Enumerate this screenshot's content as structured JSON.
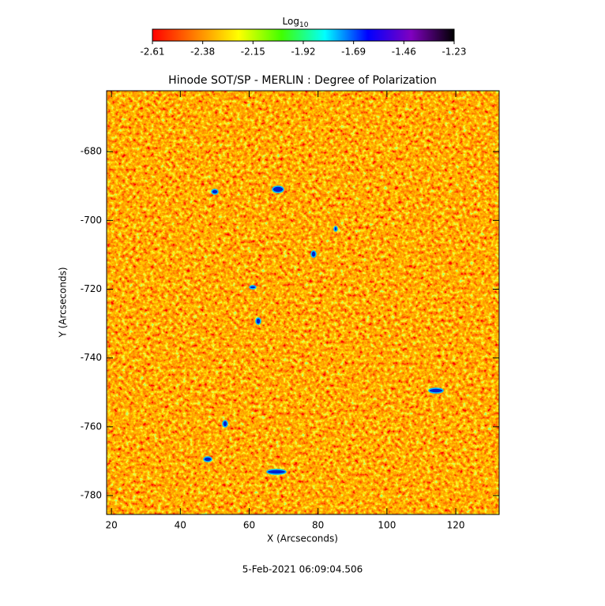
{
  "chart_data": {
    "type": "image",
    "title": "Hinode SOT/SP - MERLIN : Degree of Polarization",
    "xlabel": "X (Arcseconds)",
    "ylabel": "Y (Arcseconds)",
    "date": "5-Feb-2021 06:09:04.506",
    "xlim": [
      18.6,
      132.6
    ],
    "ylim": [
      -785.5,
      -662.3
    ],
    "xticks": [
      20,
      40,
      60,
      80,
      100,
      120
    ],
    "yticks": [
      -780,
      -760,
      -740,
      -720,
      -700,
      -680
    ],
    "colorbar": {
      "label": "Log",
      "label_subscript": "10",
      "lim": [
        -2.61,
        -1.23
      ],
      "ticks": [
        -2.61,
        -2.38,
        -2.15,
        -1.92,
        -1.69,
        -1.46,
        -1.23
      ],
      "colormap": [
        "#ff0000",
        "#ff8000",
        "#ffff00",
        "#40ff00",
        "#00ffff",
        "#0000ff",
        "#8000c0",
        "#000000"
      ]
    }
  }
}
